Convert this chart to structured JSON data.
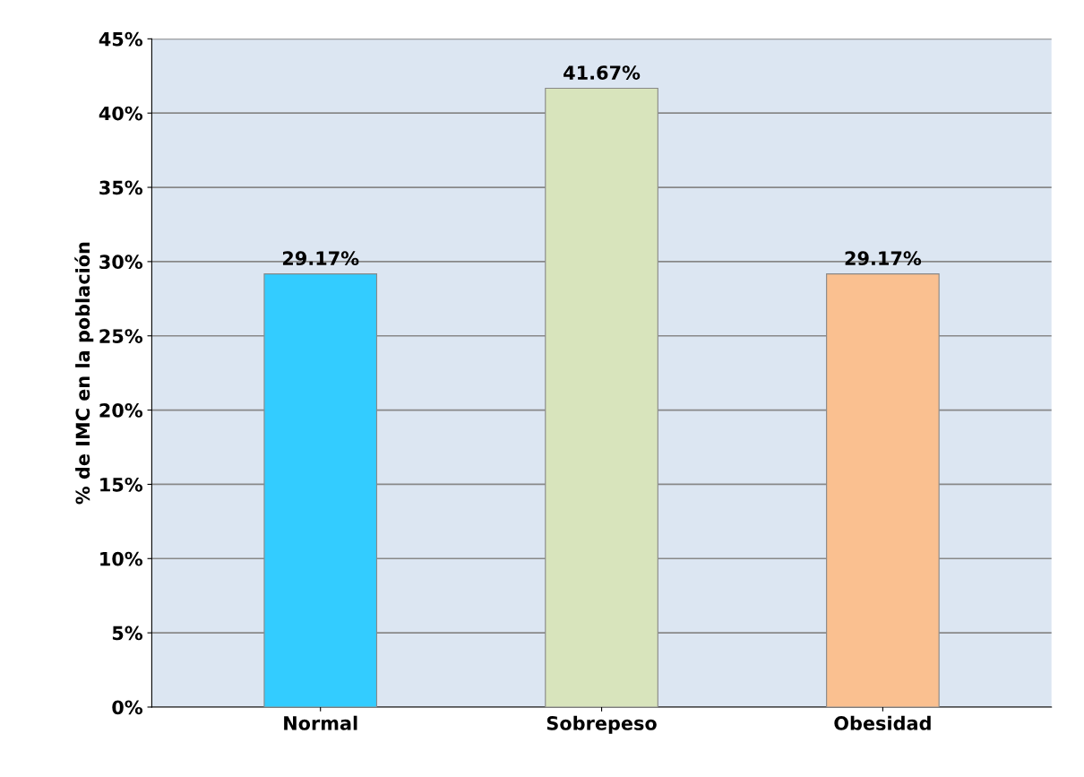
{
  "chart_data": {
    "type": "bar",
    "ylabel": "% de IMC en la población",
    "categories": [
      "Normal",
      "Sobrepeso",
      "Obesidad"
    ],
    "values": [
      29.17,
      41.67,
      29.17
    ],
    "colors": [
      "#33ccff",
      "#d8e4bc",
      "#fac090"
    ],
    "value_labels": [
      "29.17%",
      "41.67%",
      "29.17%"
    ],
    "ylim": [
      0,
      45
    ],
    "yticks": [
      {
        "value": 0,
        "label": "0%"
      },
      {
        "value": 5,
        "label": "5%"
      },
      {
        "value": 10,
        "label": "10%"
      },
      {
        "value": 15,
        "label": "15%"
      },
      {
        "value": 20,
        "label": "20%"
      },
      {
        "value": 25,
        "label": "25%"
      },
      {
        "value": 30,
        "label": "30%"
      },
      {
        "value": 35,
        "label": "35%"
      },
      {
        "value": 40,
        "label": "40%"
      },
      {
        "value": 45,
        "label": "45%"
      }
    ],
    "grid": "y",
    "legend": false
  }
}
